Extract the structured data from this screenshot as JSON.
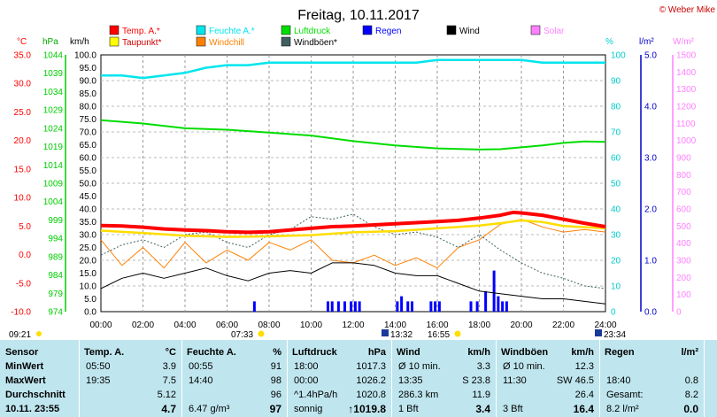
{
  "title": "Freitag, 10.11.2017",
  "copyright": "© Weber Mike",
  "legend": [
    {
      "name": "Temp. A.*",
      "color": "#ff0000"
    },
    {
      "name": "Feuchte A.*",
      "color": "#00e5ee"
    },
    {
      "name": "Luftdruck",
      "color": "#00dd00"
    },
    {
      "name": "Regen",
      "color": "#0000ff"
    },
    {
      "name": "Wind",
      "color": "#000000"
    },
    {
      "name": "Solar",
      "color": "#ff80ff"
    },
    {
      "name": "Taupunkt*",
      "color": "#ffff00"
    },
    {
      "name": "Windchill",
      "color": "#ff8000"
    },
    {
      "name": "Windböen*",
      "color": "#406060"
    }
  ],
  "axis_units": {
    "temp": "°C",
    "hpa": "hPa",
    "kmh": "km/h",
    "pct": "%",
    "rain": "l/m²",
    "solar": "W/m²"
  },
  "sun_times": {
    "sunrise": "07:33",
    "sunset": "16:55",
    "moon_left": "09:21",
    "moon_rise": "13:32",
    "moon_right": "23:34"
  },
  "chart_data": {
    "type": "line",
    "x_ticks": [
      "00:00",
      "02:00",
      "04:00",
      "06:00",
      "08:00",
      "10:00",
      "12:00",
      "14:00",
      "16:00",
      "18:00",
      "20:00",
      "22:00",
      "24:00"
    ],
    "xlim_hours": [
      0,
      24
    ],
    "axes": {
      "temp_c": {
        "min": -10,
        "max": 35,
        "ticks": [
          "35.0",
          "30.0",
          "25.0",
          "20.0",
          "15.0",
          "10.0",
          "5.0",
          "0.0",
          "-5.0",
          "-10.0"
        ]
      },
      "pressure_hpa": {
        "min": 974,
        "max": 1044,
        "ticks": [
          "1044",
          "1039",
          "1034",
          "1029",
          "1024",
          "1019",
          "1014",
          "1009",
          "1004",
          "999",
          "994",
          "989",
          "984",
          "979",
          "974"
        ]
      },
      "wind_kmh": {
        "min": 0,
        "max": 100,
        "ticks": [
          "100.0",
          "95.0",
          "90.0",
          "85.0",
          "80.0",
          "75.0",
          "70.0",
          "65.0",
          "60.0",
          "55.0",
          "50.0",
          "45.0",
          "40.0",
          "35.0",
          "30.0",
          "25.0",
          "20.0",
          "15.0",
          "10.0",
          "5.0",
          "0.0"
        ]
      },
      "humidity_pct": {
        "min": 0,
        "max": 100,
        "ticks": [
          "100",
          "90",
          "80",
          "70",
          "60",
          "50",
          "40",
          "30",
          "20",
          "10",
          "0"
        ]
      },
      "rain_lm2": {
        "min": 0,
        "max": 5,
        "ticks": [
          "5.0",
          "4.0",
          "3.0",
          "2.0",
          "1.0",
          "0.0"
        ]
      },
      "solar_wm2": {
        "min": 0,
        "max": 1500,
        "ticks": [
          "1500",
          "1400",
          "1300",
          "1200",
          "1100",
          "1000",
          "900",
          "800",
          "700",
          "600",
          "500",
          "400",
          "300",
          "200",
          "100",
          "0"
        ]
      }
    },
    "series": [
      {
        "name": "Temp. A.*",
        "axis": "temp_c",
        "x": [
          0,
          1,
          2,
          3,
          4,
          5,
          6,
          7,
          8,
          9,
          10,
          11,
          12,
          13,
          14,
          15,
          16,
          17,
          18,
          19,
          19.6,
          20,
          21,
          22,
          23,
          24
        ],
        "y": [
          5.1,
          5.0,
          4.8,
          4.5,
          4.3,
          4.2,
          4.0,
          3.9,
          4.0,
          4.3,
          4.6,
          4.9,
          5.0,
          5.2,
          5.4,
          5.6,
          5.8,
          6.0,
          6.4,
          6.9,
          7.4,
          7.3,
          6.9,
          6.2,
          5.5,
          4.9
        ]
      },
      {
        "name": "Taupunkt*",
        "axis": "temp_c",
        "x": [
          0,
          2,
          4,
          6,
          8,
          10,
          12,
          14,
          16,
          18,
          19,
          20,
          21,
          22,
          23,
          24
        ],
        "y": [
          4.2,
          3.8,
          3.3,
          3.1,
          3.2,
          3.4,
          3.9,
          4.1,
          4.6,
          5.1,
          5.5,
          6.0,
          5.7,
          5.0,
          4.8,
          4.6
        ]
      },
      {
        "name": "Feuchte A.*",
        "axis": "humidity_pct",
        "x": [
          0,
          1,
          2,
          3,
          4,
          5,
          6,
          7,
          8,
          9,
          10,
          11,
          12,
          13,
          14,
          15,
          16,
          17,
          18,
          19,
          20,
          21,
          22,
          23,
          24
        ],
        "y": [
          92,
          92,
          91,
          92,
          93,
          95,
          96,
          96,
          97,
          97,
          97,
          97,
          97,
          97,
          97,
          97,
          98,
          98,
          98,
          98,
          98,
          97,
          97,
          97,
          97
        ]
      },
      {
        "name": "Luftdruck",
        "axis": "pressure_hpa",
        "x": [
          0,
          2,
          4,
          6,
          8,
          10,
          12,
          14,
          16,
          18,
          19,
          20,
          21,
          22,
          23,
          24
        ],
        "y": [
          1026.2,
          1025.3,
          1024.0,
          1023.6,
          1022.8,
          1022.0,
          1020.5,
          1019.3,
          1018.5,
          1018.2,
          1018.3,
          1018.8,
          1019.3,
          1020.0,
          1020.4,
          1020.3
        ]
      },
      {
        "name": "Wind",
        "axis": "wind_kmh",
        "x": [
          0,
          1,
          2,
          3,
          4,
          5,
          6,
          7,
          8,
          9,
          10,
          11,
          12,
          13,
          14,
          15,
          16,
          17,
          18,
          19,
          20,
          21,
          22,
          23,
          24
        ],
        "y": [
          9,
          13,
          15,
          13,
          15,
          17,
          14,
          12,
          15,
          16,
          15,
          19,
          19,
          18,
          15,
          14,
          14,
          11,
          8,
          7,
          6,
          5,
          5,
          4,
          3
        ]
      },
      {
        "name": "Windchill",
        "axis": "wind_kmh",
        "x": [
          0,
          1,
          2,
          3,
          4,
          5,
          6,
          7,
          8,
          9,
          10,
          11,
          12,
          13,
          14,
          15,
          16,
          17,
          18,
          19,
          20,
          21,
          22,
          23,
          24
        ],
        "y": [
          28,
          18,
          25,
          17,
          27,
          19,
          24,
          20,
          27,
          24,
          28,
          20,
          19,
          22,
          18,
          21,
          17,
          25,
          28,
          34,
          36,
          33,
          31,
          32,
          31
        ]
      },
      {
        "name": "Windböen*",
        "axis": "wind_kmh",
        "x": [
          0,
          1,
          2,
          3,
          4,
          5,
          6,
          7,
          8,
          9,
          10,
          11,
          12,
          13,
          14,
          15,
          16,
          17,
          18,
          19,
          20,
          21,
          22,
          23,
          24
        ],
        "y": [
          22,
          26,
          28,
          25,
          30,
          31,
          27,
          25,
          30,
          32,
          37,
          36,
          38,
          33,
          30,
          31,
          29,
          25,
          30,
          24,
          19,
          15,
          13,
          10,
          9
        ]
      },
      {
        "name": "Regen",
        "axis": "rain_lm2",
        "type": "bar",
        "x": [
          7.3,
          10.8,
          11.0,
          11.3,
          11.6,
          11.9,
          12.1,
          12.3,
          14.1,
          14.3,
          14.6,
          14.8,
          15.7,
          15.9,
          16.1,
          17.6,
          17.9,
          18.3,
          18.7,
          18.9,
          19.1,
          19.3
        ],
        "y": [
          0.2,
          0.2,
          0.2,
          0.2,
          0.2,
          0.2,
          0.2,
          0.2,
          0.2,
          0.3,
          0.2,
          0.2,
          0.2,
          0.2,
          0.2,
          0.2,
          0.2,
          0.4,
          0.8,
          0.3,
          0.2,
          0.2
        ]
      }
    ]
  },
  "stats": {
    "sensor": {
      "header": "Sensor",
      "rows": [
        "MinWert",
        "MaxWert",
        "Durchschnitt"
      ],
      "footer": "10.11. 23:55"
    },
    "temp": {
      "header": "Temp. A.",
      "unit": "°C",
      "rows": [
        [
          "05:50",
          "3.9"
        ],
        [
          "19:35",
          "7.5"
        ],
        [
          "",
          "5.12"
        ]
      ],
      "footer": "4.7"
    },
    "humidity": {
      "header": "Feuchte A.",
      "unit": "%",
      "rows": [
        [
          "00:55",
          "91"
        ],
        [
          "14:40",
          "98"
        ],
        [
          "",
          "96"
        ]
      ],
      "footer_left": "6.47 g/m³",
      "footer": "97"
    },
    "pressure": {
      "header": "Luftdruck",
      "unit": "hPa",
      "rows": [
        [
          "18:00",
          "1017.3"
        ],
        [
          "00:00",
          "1026.2"
        ],
        [
          "^1.4hPa/h",
          "1020.8"
        ]
      ],
      "footer_left": "sonnig",
      "footer": "↑1019.8"
    },
    "wind": {
      "header": "Wind",
      "unit": "km/h",
      "rows": [
        [
          "Ø 10 min.",
          "3.3"
        ],
        [
          "13:35",
          "S 23.8"
        ],
        [
          "286.3 km",
          "11.9"
        ]
      ],
      "footer_left": "1 Bft",
      "footer": "3.4"
    },
    "gusts": {
      "header": "Windböen",
      "unit": "km/h",
      "rows": [
        [
          "Ø 10 min.",
          "12.3"
        ],
        [
          "11:30",
          "SW 46.5"
        ],
        [
          "",
          "26.4"
        ]
      ],
      "footer_left": "3 Bft",
      "footer": "16.4"
    },
    "rain": {
      "header": "Regen",
      "unit": "l/m²",
      "rows": [
        [
          "",
          ""
        ],
        [
          "18:40",
          "0.8"
        ],
        [
          "Gesamt:",
          "8.2"
        ]
      ],
      "footer_left": "8.2 l/m²",
      "footer": "0.0"
    }
  }
}
